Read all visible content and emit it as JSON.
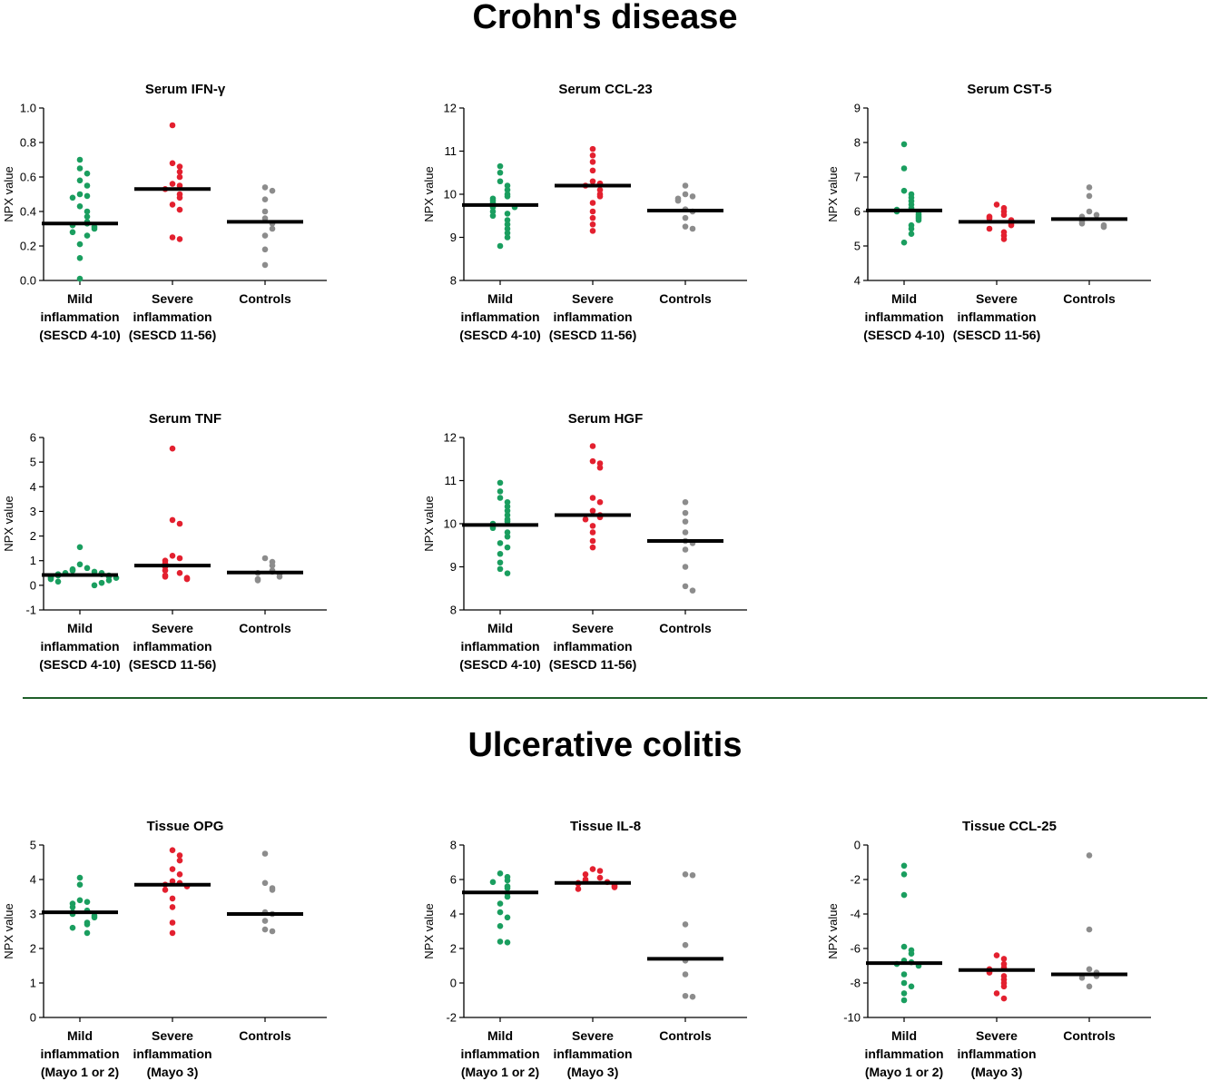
{
  "sections": [
    {
      "title": "Crohn's disease"
    },
    {
      "title": "Ulcerative colitis"
    }
  ],
  "colors": {
    "mild": "#1a9e5f",
    "severe": "#e3202f",
    "controls": "#8c8c8c",
    "median": "#000000",
    "divider": "#1f5f2a"
  },
  "chart_data": [
    {
      "type": "scatter",
      "section": "Crohn's disease",
      "title": "Serum IFN-γ",
      "ylabel": "NPX value",
      "ylim": [
        0,
        1.0
      ],
      "yticks": [
        "0.0",
        "0.2",
        "0.4",
        "0.6",
        "0.8",
        "1.0"
      ],
      "yticks_num": [
        0,
        0.2,
        0.4,
        0.6,
        0.8,
        1.0
      ],
      "categories": [
        [
          "Mild",
          "inflammation",
          "(SESCD 4-10)"
        ],
        [
          "Severe",
          "inflammation",
          "(SESCD 11-56)"
        ],
        [
          "Controls"
        ]
      ],
      "series": [
        {
          "values": [
            0.7,
            0.65,
            0.62,
            0.58,
            0.55,
            0.5,
            0.49,
            0.48,
            0.43,
            0.4,
            0.37,
            0.34,
            0.33,
            0.32,
            0.31,
            0.3,
            0.28,
            0.26,
            0.21,
            0.13,
            0.01
          ],
          "median": 0.33
        },
        {
          "values": [
            0.9,
            0.68,
            0.66,
            0.63,
            0.6,
            0.56,
            0.55,
            0.53,
            0.5,
            0.48,
            0.44,
            0.41,
            0.25,
            0.24
          ],
          "median": 0.53
        },
        {
          "values": [
            0.54,
            0.52,
            0.47,
            0.4,
            0.36,
            0.33,
            0.3,
            0.26,
            0.18,
            0.09
          ],
          "median": 0.34
        }
      ]
    },
    {
      "type": "scatter",
      "section": "Crohn's disease",
      "title": "Serum CCL-23",
      "ylabel": "NPX value",
      "ylim": [
        8,
        12
      ],
      "yticks": [
        "8",
        "9",
        "10",
        "11",
        "12"
      ],
      "yticks_num": [
        8,
        9,
        10,
        11,
        12
      ],
      "categories": [
        [
          "Mild",
          "inflammation",
          "(SESCD 4-10)"
        ],
        [
          "Severe",
          "inflammation",
          "(SESCD 11-56)"
        ],
        [
          "Controls"
        ]
      ],
      "series": [
        {
          "values": [
            10.65,
            10.5,
            10.3,
            10.2,
            10.1,
            10.0,
            9.95,
            9.9,
            9.85,
            9.8,
            9.75,
            9.7,
            9.7,
            9.6,
            9.55,
            9.5,
            9.4,
            9.3,
            9.2,
            9.1,
            9.0,
            8.8
          ],
          "median": 9.75
        },
        {
          "values": [
            11.05,
            10.9,
            10.75,
            10.55,
            10.3,
            10.25,
            10.2,
            10.1,
            10.0,
            9.95,
            9.8,
            9.6,
            9.45,
            9.3,
            9.15
          ],
          "median": 10.2
        },
        {
          "values": [
            10.2,
            10.0,
            9.95,
            9.9,
            9.85,
            9.65,
            9.6,
            9.45,
            9.25,
            9.2
          ],
          "median": 9.62
        }
      ]
    },
    {
      "type": "scatter",
      "section": "Crohn's disease",
      "title": "Serum CST-5",
      "ylabel": "NPX value",
      "ylim": [
        4,
        9
      ],
      "yticks": [
        "4",
        "5",
        "6",
        "7",
        "8",
        "9"
      ],
      "yticks_num": [
        4,
        5,
        6,
        7,
        8,
        9
      ],
      "categories": [
        [
          "Mild",
          "inflammation",
          "(SESCD 4-10)"
        ],
        [
          "Severe",
          "inflammation",
          "(SESCD 11-56)"
        ],
        [
          "Controls"
        ]
      ],
      "series": [
        {
          "values": [
            7.95,
            7.25,
            6.6,
            6.5,
            6.4,
            6.3,
            6.2,
            6.1,
            6.05,
            6.0,
            5.95,
            5.9,
            5.85,
            5.8,
            5.75,
            5.6,
            5.5,
            5.35,
            5.1
          ],
          "median": 6.03
        },
        {
          "values": [
            6.2,
            6.1,
            6.0,
            5.9,
            5.85,
            5.8,
            5.75,
            5.7,
            5.65,
            5.6,
            5.5,
            5.4,
            5.3,
            5.2
          ],
          "median": 5.7
        },
        {
          "values": [
            6.7,
            6.45,
            6.0,
            5.9,
            5.85,
            5.75,
            5.7,
            5.65,
            5.6,
            5.55
          ],
          "median": 5.78
        }
      ]
    },
    {
      "type": "scatter",
      "section": "Crohn's disease",
      "title": "Serum TNF",
      "ylabel": "NPX value",
      "ylim": [
        -1,
        6
      ],
      "yticks": [
        "-1",
        "0",
        "1",
        "2",
        "3",
        "4",
        "5",
        "6"
      ],
      "yticks_num": [
        -1,
        0,
        1,
        2,
        3,
        4,
        5,
        6
      ],
      "categories": [
        [
          "Mild",
          "inflammation",
          "(SESCD 4-10)"
        ],
        [
          "Severe",
          "inflammation",
          "(SESCD 11-56)"
        ],
        [
          "Controls"
        ]
      ],
      "series": [
        {
          "values": [
            1.55,
            0.85,
            0.7,
            0.65,
            0.6,
            0.55,
            0.5,
            0.5,
            0.45,
            0.45,
            0.4,
            0.4,
            0.35,
            0.35,
            0.3,
            0.3,
            0.25,
            0.2,
            0.15,
            0.1,
            0.0
          ],
          "median": 0.42
        },
        {
          "values": [
            5.55,
            2.65,
            2.5,
            1.2,
            1.1,
            1.0,
            0.9,
            0.8,
            0.75,
            0.6,
            0.5,
            0.4,
            0.35,
            0.3,
            0.25
          ],
          "median": 0.8
        },
        {
          "values": [
            1.1,
            0.95,
            0.8,
            0.6,
            0.55,
            0.5,
            0.45,
            0.35,
            0.25,
            0.2
          ],
          "median": 0.52
        }
      ]
    },
    {
      "type": "scatter",
      "section": "Crohn's disease",
      "title": "Serum HGF",
      "ylabel": "NPX value",
      "ylim": [
        8,
        12
      ],
      "yticks": [
        "8",
        "9",
        "10",
        "11",
        "12"
      ],
      "yticks_num": [
        8,
        9,
        10,
        11,
        12
      ],
      "categories": [
        [
          "Mild",
          "inflammation",
          "(SESCD 4-10)"
        ],
        [
          "Severe",
          "inflammation",
          "(SESCD 11-56)"
        ],
        [
          "Controls"
        ]
      ],
      "series": [
        {
          "values": [
            10.95,
            10.75,
            10.6,
            10.5,
            10.4,
            10.3,
            10.2,
            10.1,
            10.05,
            10.0,
            9.95,
            9.9,
            9.8,
            9.7,
            9.55,
            9.45,
            9.3,
            9.1,
            8.95,
            8.85
          ],
          "median": 9.97
        },
        {
          "values": [
            11.8,
            11.45,
            11.4,
            11.3,
            10.6,
            10.5,
            10.3,
            10.2,
            10.15,
            10.1,
            9.95,
            9.8,
            9.6,
            9.45
          ],
          "median": 10.2
        },
        {
          "values": [
            10.5,
            10.25,
            10.05,
            9.8,
            9.6,
            9.55,
            9.4,
            9.0,
            8.55,
            8.45
          ],
          "median": 9.6
        }
      ]
    },
    {
      "type": "scatter",
      "section": "Ulcerative colitis",
      "title": "Tissue OPG",
      "ylabel": "NPX value",
      "ylim": [
        0,
        5
      ],
      "yticks": [
        "0",
        "1",
        "2",
        "3",
        "4",
        "5"
      ],
      "yticks_num": [
        0,
        1,
        2,
        3,
        4,
        5
      ],
      "categories": [
        [
          "Mild",
          "inflammation",
          "(Mayo 1 or 2)"
        ],
        [
          "Severe",
          "inflammation",
          "(Mayo 3)"
        ],
        [
          "Controls"
        ]
      ],
      "series": [
        {
          "values": [
            4.05,
            3.85,
            3.4,
            3.35,
            3.3,
            3.2,
            3.1,
            3.05,
            3.0,
            2.95,
            2.9,
            2.75,
            2.7,
            2.6,
            2.45
          ],
          "median": 3.05
        },
        {
          "values": [
            4.85,
            4.7,
            4.55,
            4.3,
            4.15,
            3.95,
            3.9,
            3.85,
            3.8,
            3.7,
            3.45,
            3.2,
            2.75,
            2.45
          ],
          "median": 3.85
        },
        {
          "values": [
            4.75,
            3.9,
            3.75,
            3.7,
            3.05,
            3.0,
            2.8,
            2.55,
            2.5
          ],
          "median": 3.0
        }
      ]
    },
    {
      "type": "scatter",
      "section": "Ulcerative colitis",
      "title": "Tissue IL-8",
      "ylabel": "NPX value",
      "ylim": [
        -2,
        8
      ],
      "yticks": [
        "-2",
        "0",
        "2",
        "4",
        "6",
        "8"
      ],
      "yticks_num": [
        -2,
        0,
        2,
        4,
        6,
        8
      ],
      "categories": [
        [
          "Mild",
          "inflammation",
          "(Mayo 1 or 2)"
        ],
        [
          "Severe",
          "inflammation",
          "(Mayo 3)"
        ],
        [
          "Controls"
        ]
      ],
      "series": [
        {
          "values": [
            6.35,
            6.15,
            5.95,
            5.85,
            5.6,
            5.5,
            5.2,
            5.0,
            4.6,
            4.1,
            3.8,
            3.3,
            2.4,
            2.35
          ],
          "median": 5.25
        },
        {
          "values": [
            6.6,
            6.5,
            6.3,
            6.1,
            6.0,
            5.9,
            5.85,
            5.8,
            5.75,
            5.7,
            5.6,
            5.55,
            5.45
          ],
          "median": 5.8
        },
        {
          "values": [
            6.3,
            6.25,
            3.4,
            2.2,
            1.3,
            0.5,
            -0.75,
            -0.8
          ],
          "median": 1.4
        }
      ]
    },
    {
      "type": "scatter",
      "section": "Ulcerative colitis",
      "title": "Tissue CCL-25",
      "ylabel": "NPX value",
      "ylim": [
        -10,
        0
      ],
      "yticks": [
        "-10",
        "-8",
        "-6",
        "-4",
        "-2",
        "0"
      ],
      "yticks_num": [
        -10,
        -8,
        -6,
        -4,
        -2,
        0
      ],
      "categories": [
        [
          "Mild",
          "inflammation",
          "(Mayo 1 or 2)"
        ],
        [
          "Severe",
          "inflammation",
          "(Mayo 3)"
        ],
        [
          "Controls"
        ]
      ],
      "series": [
        {
          "values": [
            -1.2,
            -1.7,
            -2.9,
            -5.9,
            -6.1,
            -6.3,
            -6.7,
            -6.8,
            -6.9,
            -7.0,
            -7.5,
            -8.0,
            -8.2,
            -8.6,
            -9.0
          ],
          "median": -6.85
        },
        {
          "values": [
            -6.4,
            -6.6,
            -6.9,
            -7.1,
            -7.2,
            -7.4,
            -7.6,
            -7.8,
            -8.0,
            -8.2,
            -8.6,
            -8.9
          ],
          "median": -7.25
        },
        {
          "values": [
            -0.6,
            -4.9,
            -7.2,
            -7.4,
            -7.6,
            -7.7,
            -8.2
          ],
          "median": -7.5
        }
      ]
    }
  ]
}
